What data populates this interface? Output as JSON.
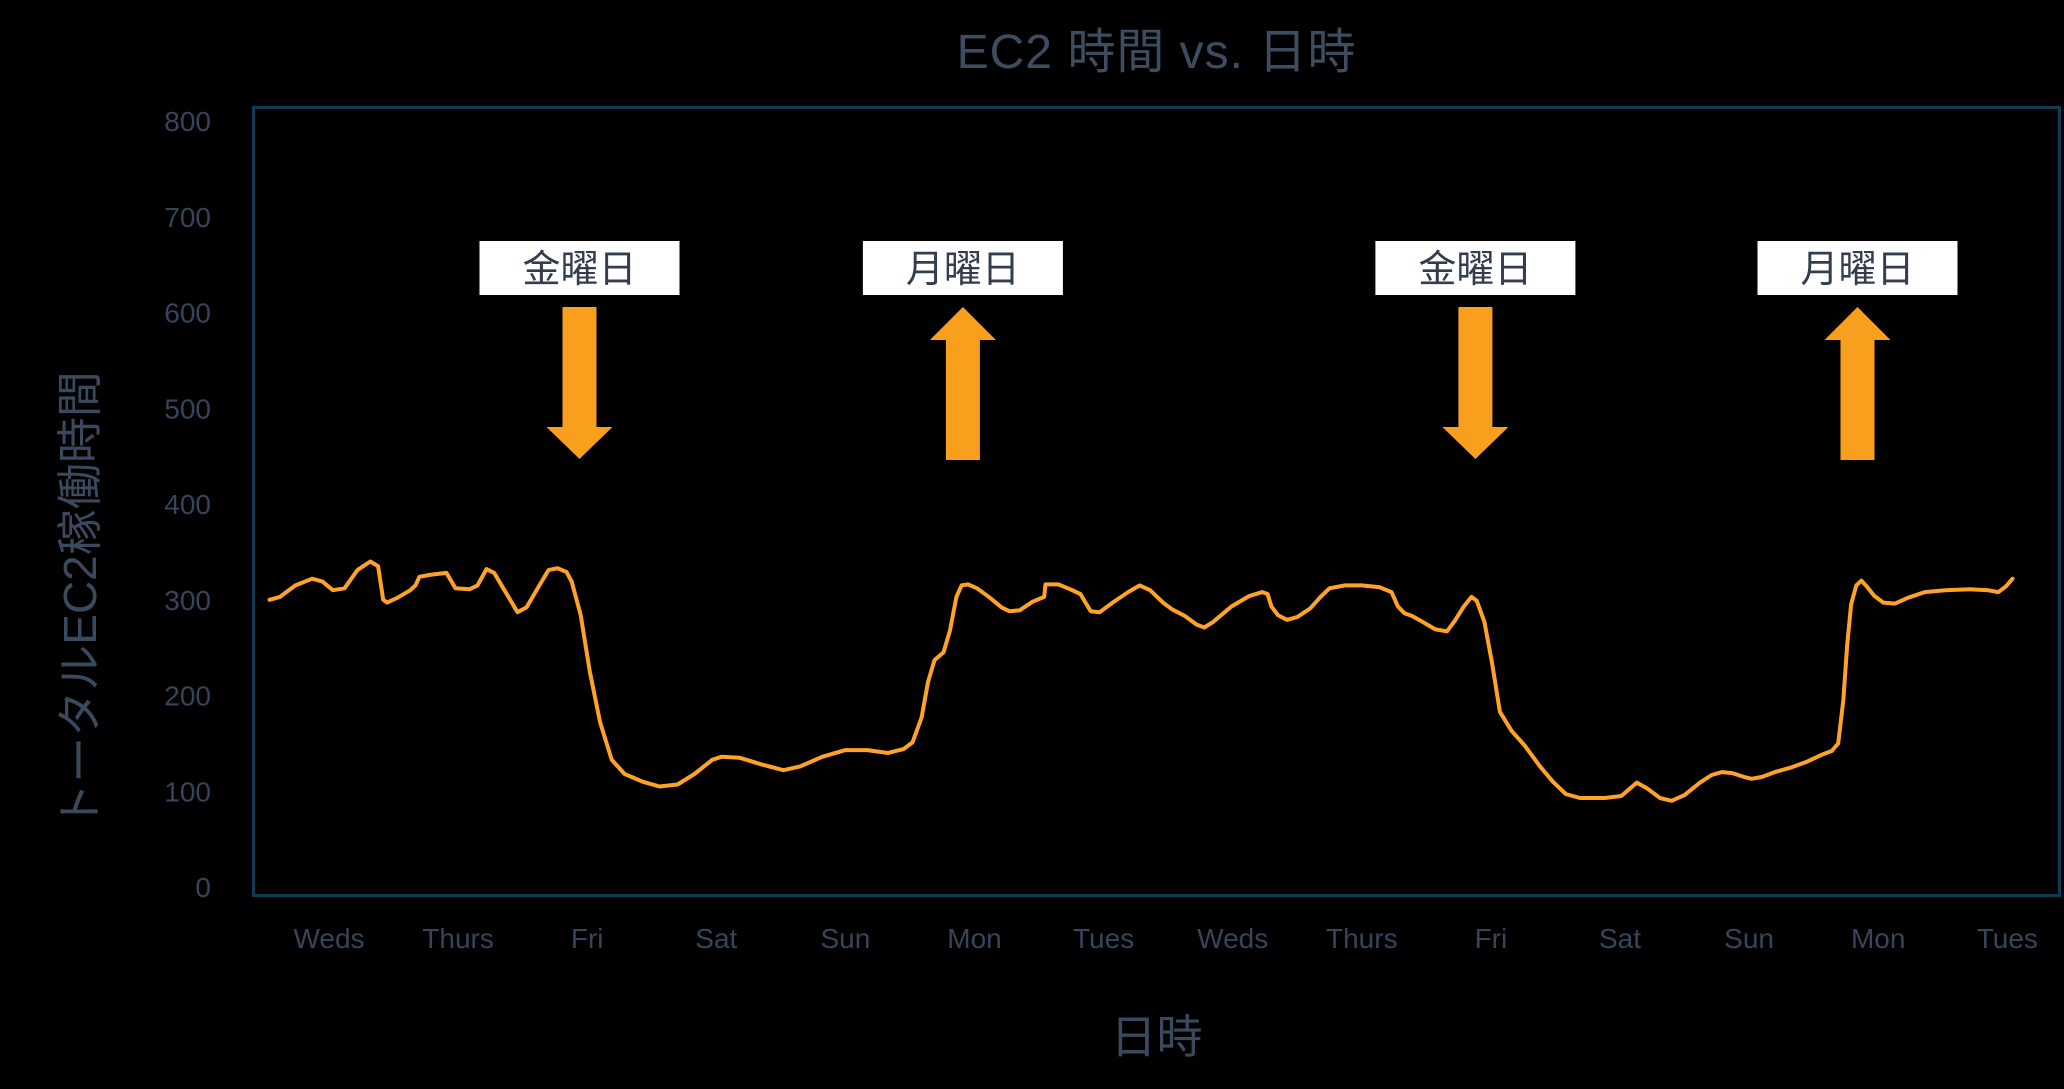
{
  "chart_data": {
    "type": "line",
    "title": "EC2 時間 vs. 日時",
    "xlabel": "日時",
    "ylabel": "トータルEC2稼働時間",
    "x_tick_labels": [
      "Weds",
      "Thurs",
      "Fri",
      "Sat",
      "Sun",
      "Mon",
      "Tues",
      "Weds",
      "Thurs",
      "Fri",
      "Sat",
      "Sun",
      "Mon",
      "Tues"
    ],
    "y_ticks": [
      0,
      100,
      200,
      300,
      400,
      500,
      600,
      700,
      800
    ],
    "ylim": [
      0,
      800
    ],
    "grid": false,
    "legend": "none",
    "background_color": "#000000",
    "plot_border_color": "#0E3C55",
    "line_color": "#FFA328",
    "tick_label_color": "#35455A",
    "axis_label_color": "#3A4A5E",
    "title_color": "#3D4D60",
    "annotation_box_color": "#FFFFFF",
    "annotation_text_color": "#333D4D",
    "annotation_arrow_color": "#F8A01E",
    "series": [
      {
        "name": "トータルEC2稼働時間",
        "x_unit": "days from first Weds tick",
        "y_unit": "EC2 hours",
        "points": [
          [
            -0.46,
            300
          ],
          [
            -0.38,
            303
          ],
          [
            -0.26,
            315
          ],
          [
            -0.13,
            322
          ],
          [
            -0.05,
            319
          ],
          [
            0.03,
            310
          ],
          [
            0.12,
            312
          ],
          [
            0.22,
            331
          ],
          [
            0.32,
            340
          ],
          [
            0.38,
            335
          ],
          [
            0.42,
            300
          ],
          [
            0.45,
            297
          ],
          [
            0.53,
            302
          ],
          [
            0.63,
            310
          ],
          [
            0.67,
            315
          ],
          [
            0.7,
            324
          ],
          [
            0.78,
            326
          ],
          [
            0.91,
            328
          ],
          [
            0.95,
            319
          ],
          [
            0.98,
            312
          ],
          [
            1.09,
            311
          ],
          [
            1.15,
            315
          ],
          [
            1.22,
            332
          ],
          [
            1.28,
            328
          ],
          [
            1.35,
            312
          ],
          [
            1.46,
            287
          ],
          [
            1.53,
            292
          ],
          [
            1.63,
            315
          ],
          [
            1.7,
            331
          ],
          [
            1.77,
            333
          ],
          [
            1.84,
            329
          ],
          [
            1.88,
            319
          ],
          [
            1.95,
            284
          ],
          [
            2.02,
            225
          ],
          [
            2.1,
            172
          ],
          [
            2.19,
            133
          ],
          [
            2.29,
            118
          ],
          [
            2.43,
            110
          ],
          [
            2.56,
            105
          ],
          [
            2.7,
            107
          ],
          [
            2.83,
            118
          ],
          [
            2.97,
            133
          ],
          [
            3.04,
            136
          ],
          [
            3.18,
            135
          ],
          [
            3.35,
            128
          ],
          [
            3.52,
            122
          ],
          [
            3.65,
            126
          ],
          [
            3.82,
            136
          ],
          [
            4.0,
            143
          ],
          [
            4.17,
            143
          ],
          [
            4.33,
            140
          ],
          [
            4.45,
            144
          ],
          [
            4.52,
            151
          ],
          [
            4.59,
            177
          ],
          [
            4.64,
            214
          ],
          [
            4.69,
            237
          ],
          [
            4.76,
            245
          ],
          [
            4.81,
            268
          ],
          [
            4.86,
            303
          ],
          [
            4.9,
            315
          ],
          [
            4.95,
            316
          ],
          [
            5.02,
            312
          ],
          [
            5.12,
            302
          ],
          [
            5.21,
            292
          ],
          [
            5.27,
            288
          ],
          [
            5.35,
            289
          ],
          [
            5.45,
            298
          ],
          [
            5.54,
            303
          ],
          [
            5.55,
            316
          ],
          [
            5.65,
            316
          ],
          [
            5.74,
            311
          ],
          [
            5.82,
            306
          ],
          [
            5.86,
            297
          ],
          [
            5.9,
            288
          ],
          [
            5.97,
            287
          ],
          [
            6.07,
            297
          ],
          [
            6.19,
            308
          ],
          [
            6.28,
            315
          ],
          [
            6.36,
            310
          ],
          [
            6.46,
            297
          ],
          [
            6.53,
            290
          ],
          [
            6.63,
            283
          ],
          [
            6.72,
            274
          ],
          [
            6.78,
            271
          ],
          [
            6.85,
            277
          ],
          [
            6.99,
            293
          ],
          [
            7.13,
            304
          ],
          [
            7.23,
            308
          ],
          [
            7.27,
            306
          ],
          [
            7.3,
            293
          ],
          [
            7.35,
            284
          ],
          [
            7.42,
            279
          ],
          [
            7.5,
            282
          ],
          [
            7.6,
            291
          ],
          [
            7.68,
            303
          ],
          [
            7.75,
            312
          ],
          [
            7.87,
            315
          ],
          [
            8.0,
            315
          ],
          [
            8.14,
            313
          ],
          [
            8.23,
            308
          ],
          [
            8.28,
            293
          ],
          [
            8.33,
            286
          ],
          [
            8.39,
            283
          ],
          [
            8.47,
            277
          ],
          [
            8.57,
            269
          ],
          [
            8.66,
            267
          ],
          [
            8.72,
            278
          ],
          [
            8.79,
            293
          ],
          [
            8.85,
            303
          ],
          [
            8.89,
            299
          ],
          [
            8.95,
            277
          ],
          [
            9.01,
            233
          ],
          [
            9.07,
            183
          ],
          [
            9.16,
            163
          ],
          [
            9.26,
            148
          ],
          [
            9.38,
            126
          ],
          [
            9.48,
            110
          ],
          [
            9.58,
            97
          ],
          [
            9.69,
            93
          ],
          [
            9.88,
            93
          ],
          [
            10.01,
            95
          ],
          [
            10.13,
            109
          ],
          [
            10.21,
            103
          ],
          [
            10.31,
            93
          ],
          [
            10.4,
            90
          ],
          [
            10.5,
            96
          ],
          [
            10.62,
            109
          ],
          [
            10.71,
            117
          ],
          [
            10.79,
            120
          ],
          [
            10.87,
            119
          ],
          [
            10.96,
            115
          ],
          [
            11.02,
            113
          ],
          [
            11.1,
            115
          ],
          [
            11.2,
            120
          ],
          [
            11.33,
            125
          ],
          [
            11.45,
            131
          ],
          [
            11.56,
            138
          ],
          [
            11.64,
            142
          ],
          [
            11.69,
            150
          ],
          [
            11.73,
            195
          ],
          [
            11.76,
            253
          ],
          [
            11.79,
            295
          ],
          [
            11.83,
            315
          ],
          [
            11.87,
            320
          ],
          [
            11.91,
            314
          ],
          [
            11.97,
            304
          ],
          [
            12.04,
            297
          ],
          [
            12.13,
            296
          ],
          [
            12.23,
            302
          ],
          [
            12.36,
            308
          ],
          [
            12.52,
            310
          ],
          [
            12.71,
            311
          ],
          [
            12.85,
            310
          ],
          [
            12.93,
            308
          ],
          [
            12.99,
            314
          ],
          [
            13.04,
            322
          ]
        ]
      }
    ],
    "annotations": [
      {
        "label": "金曜日",
        "day": 1.94,
        "direction": "down"
      },
      {
        "label": "月曜日",
        "day": 4.91,
        "direction": "up"
      },
      {
        "label": "金曜日",
        "day": 8.88,
        "direction": "down"
      },
      {
        "label": "月曜日",
        "day": 11.84,
        "direction": "up"
      }
    ]
  }
}
